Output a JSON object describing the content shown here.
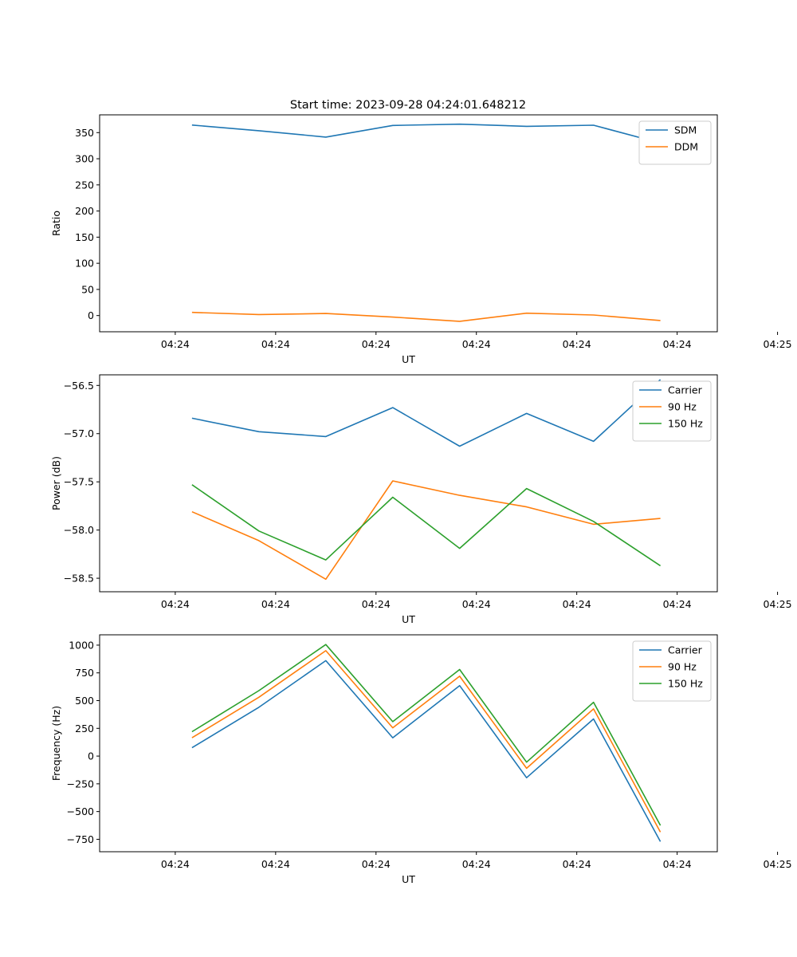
{
  "figure_title": "Start time: 2023-09-28 04:24:01.648212",
  "chart_data": [
    {
      "type": "line",
      "title": "Start time: 2023-09-28 04:24:01.648212",
      "xlabel": "UT",
      "ylabel": "Ratio",
      "xlim": [
        -0.38,
        8.85
      ],
      "ylim": [
        -31,
        384
      ],
      "x": [
        1,
        2,
        3,
        4,
        5,
        6,
        7,
        8
      ],
      "x_ticks": [
        0.75,
        2.25,
        3.75,
        5.25,
        6.75,
        8.25,
        9.75
      ],
      "x_tick_labels": [
        "04:24",
        "04:24",
        "04:24",
        "04:24",
        "04:24",
        "04:24",
        "04:25"
      ],
      "y_ticks": [
        0,
        50,
        100,
        150,
        200,
        250,
        300,
        350
      ],
      "y_tick_labels": [
        "0",
        "50",
        "100",
        "150",
        "200",
        "250",
        "300",
        "350"
      ],
      "legend": "top-right",
      "series": [
        {
          "name": "SDM",
          "color": "#1f77b4",
          "values": [
            364.5,
            353.6,
            341.4,
            363.7,
            366.1,
            362.0,
            364.1,
            330.0
          ]
        },
        {
          "name": "DDM",
          "color": "#ff7f0e",
          "values": [
            6.0,
            2.0,
            4.0,
            -3.0,
            -11.0,
            4.5,
            1.0,
            -9.5
          ]
        }
      ]
    },
    {
      "type": "line",
      "title": "",
      "xlabel": "UT",
      "ylabel": "Power (dB)",
      "xlim": [
        -0.38,
        8.85
      ],
      "ylim": [
        -58.64,
        -56.39
      ],
      "x": [
        1,
        2,
        3,
        4,
        5,
        6,
        7,
        8
      ],
      "x_ticks": [
        0.75,
        2.25,
        3.75,
        5.25,
        6.75,
        8.25,
        9.75
      ],
      "x_tick_labels": [
        "04:24",
        "04:24",
        "04:24",
        "04:24",
        "04:24",
        "04:24",
        "04:25"
      ],
      "y_ticks": [
        -58.5,
        -58.0,
        -57.5,
        -57.0,
        -56.5
      ],
      "y_tick_labels": [
        "−58.5",
        "−58.0",
        "−57.5",
        "−57.0",
        "−56.5"
      ],
      "legend": "top-right",
      "series": [
        {
          "name": "Carrier",
          "color": "#1f77b4",
          "values": [
            -56.84,
            -56.98,
            -57.03,
            -56.73,
            -57.13,
            -56.79,
            -57.08,
            -56.44
          ]
        },
        {
          "name": "90 Hz",
          "color": "#ff7f0e",
          "values": [
            -57.81,
            -58.11,
            -58.51,
            -57.49,
            -57.64,
            -57.76,
            -57.94,
            -57.88
          ]
        },
        {
          "name": "150 Hz",
          "color": "#2ca02c",
          "values": [
            -57.53,
            -58.01,
            -58.31,
            -57.66,
            -58.19,
            -57.57,
            -57.91,
            -58.37
          ]
        }
      ]
    },
    {
      "type": "line",
      "title": "",
      "xlabel": "UT",
      "ylabel": "Frequency (Hz)",
      "xlim": [
        -0.38,
        8.85
      ],
      "ylim": [
        -862,
        1093
      ],
      "x": [
        1,
        2,
        3,
        4,
        5,
        6,
        7,
        8
      ],
      "x_ticks": [
        0.75,
        2.25,
        3.75,
        5.25,
        6.75,
        8.25,
        9.75
      ],
      "x_tick_labels": [
        "04:24",
        "04:24",
        "04:24",
        "04:24",
        "04:24",
        "04:24",
        "04:25"
      ],
      "y_ticks": [
        -750,
        -500,
        -250,
        0,
        250,
        500,
        750,
        1000
      ],
      "y_tick_labels": [
        "−750",
        "−500",
        "−250",
        "0",
        "250",
        "500",
        "750",
        "1000"
      ],
      "legend": "top-right",
      "series": [
        {
          "name": "Carrier",
          "color": "#1f77b4",
          "values": [
            75,
            440,
            860,
            165,
            635,
            -195,
            335,
            -770
          ]
        },
        {
          "name": "90 Hz",
          "color": "#ff7f0e",
          "values": [
            165,
            530,
            950,
            255,
            720,
            -110,
            425,
            -685
          ]
        },
        {
          "name": "150 Hz",
          "color": "#2ca02c",
          "values": [
            220,
            590,
            1005,
            310,
            780,
            -55,
            485,
            -625
          ]
        }
      ]
    }
  ]
}
